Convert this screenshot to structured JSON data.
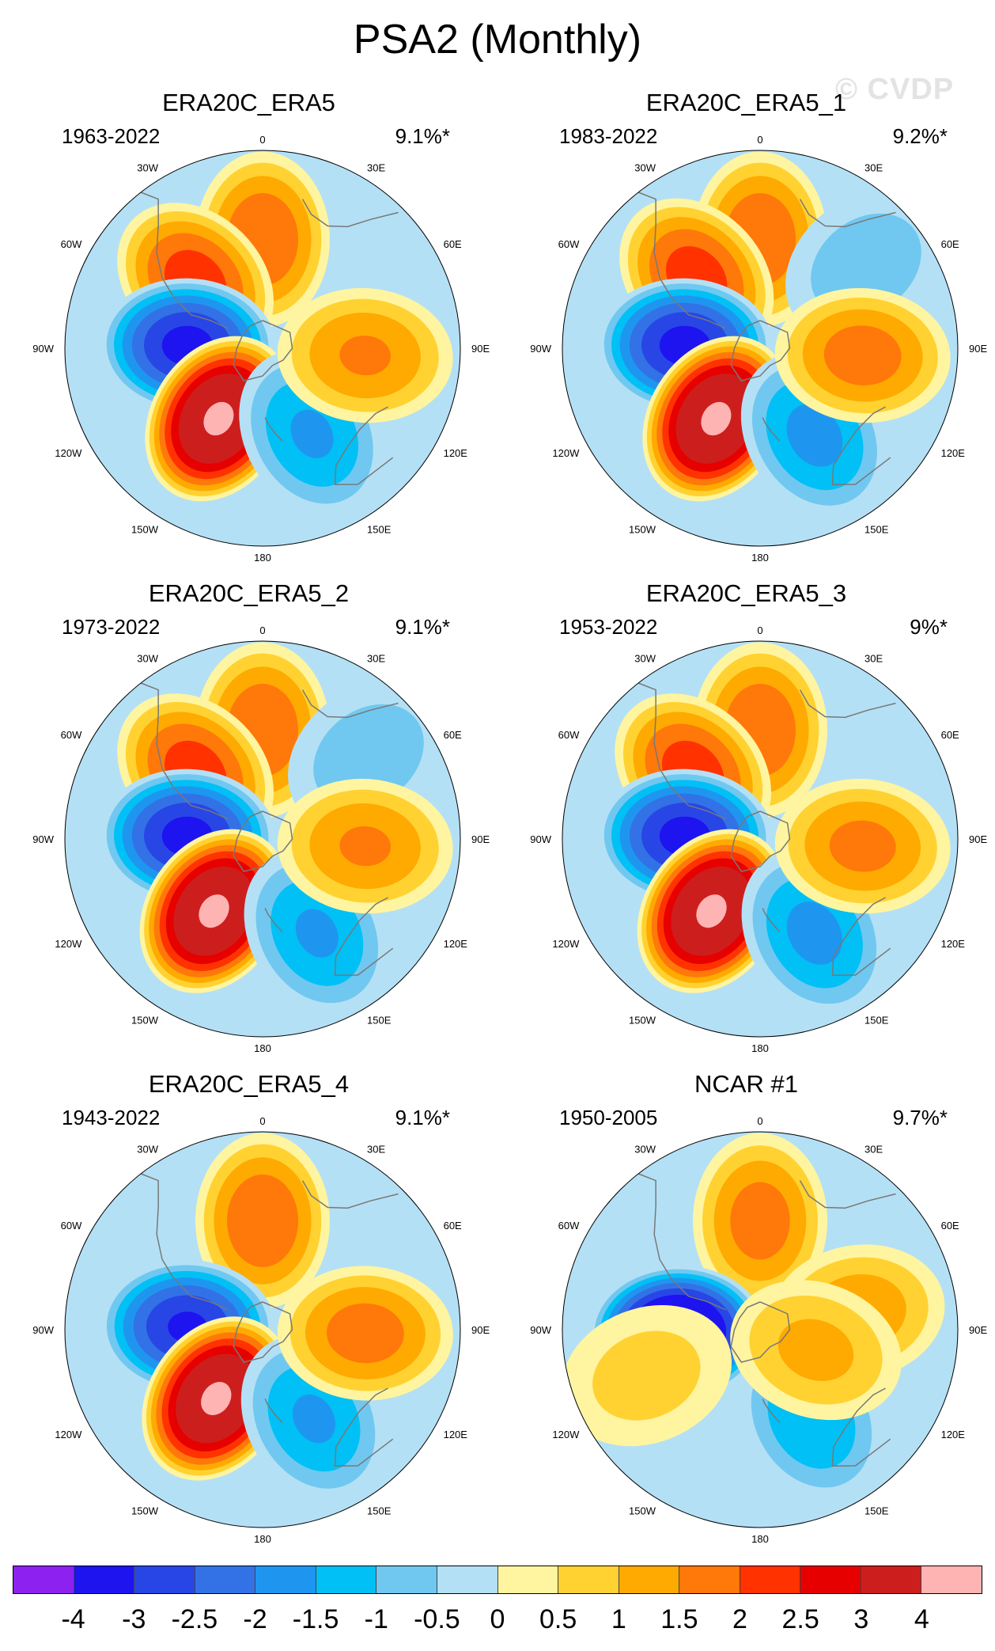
{
  "title": "PSA2 (Monthly)",
  "watermark": "© CVDP",
  "chart_data": [
    {
      "type": "heatmap",
      "title": "ERA20C_ERA5",
      "period": "1963-2022",
      "pct_variance": "9.1%*",
      "centers": [
        {
          "lon_deg": 0,
          "colat_norm": 0.55,
          "value": 2.0
        },
        {
          "lon_deg": 315,
          "colat_norm": 0.48,
          "value": 2.3
        },
        {
          "lon_deg": 272,
          "colat_norm": 0.38,
          "value": -3.2
        },
        {
          "lon_deg": 212,
          "colat_norm": 0.42,
          "value": 4.1
        },
        {
          "lon_deg": 150,
          "colat_norm": 0.5,
          "value": -1.6
        },
        {
          "lon_deg": 94,
          "colat_norm": 0.52,
          "value": 1.6
        }
      ]
    },
    {
      "type": "heatmap",
      "title": "ERA20C_ERA5_1",
      "period": "1983-2022",
      "pct_variance": "9.2%*",
      "centers": [
        {
          "lon_deg": 0,
          "colat_norm": 0.55,
          "value": 2.0
        },
        {
          "lon_deg": 318,
          "colat_norm": 0.48,
          "value": 2.3
        },
        {
          "lon_deg": 52,
          "colat_norm": 0.68,
          "value": -0.9
        },
        {
          "lon_deg": 272,
          "colat_norm": 0.38,
          "value": -3.2
        },
        {
          "lon_deg": 212,
          "colat_norm": 0.42,
          "value": 4.1
        },
        {
          "lon_deg": 148,
          "colat_norm": 0.52,
          "value": -1.7
        },
        {
          "lon_deg": 94,
          "colat_norm": 0.52,
          "value": 1.8
        }
      ]
    },
    {
      "type": "heatmap",
      "title": "ERA20C_ERA5_2",
      "period": "1973-2022",
      "pct_variance": "9.1%*",
      "centers": [
        {
          "lon_deg": 0,
          "colat_norm": 0.55,
          "value": 2.0
        },
        {
          "lon_deg": 315,
          "colat_norm": 0.48,
          "value": 2.3
        },
        {
          "lon_deg": 52,
          "colat_norm": 0.68,
          "value": -0.9
        },
        {
          "lon_deg": 272,
          "colat_norm": 0.38,
          "value": -3.2
        },
        {
          "lon_deg": 214,
          "colat_norm": 0.44,
          "value": 4.1
        },
        {
          "lon_deg": 150,
          "colat_norm": 0.55,
          "value": -1.6
        },
        {
          "lon_deg": 94,
          "colat_norm": 0.52,
          "value": 1.6
        }
      ]
    },
    {
      "type": "heatmap",
      "title": "ERA20C_ERA5_3",
      "period": "1953-2022",
      "pct_variance": "9%*",
      "centers": [
        {
          "lon_deg": 0,
          "colat_norm": 0.55,
          "value": 2.0
        },
        {
          "lon_deg": 315,
          "colat_norm": 0.48,
          "value": 2.3
        },
        {
          "lon_deg": 272,
          "colat_norm": 0.38,
          "value": -3.2
        },
        {
          "lon_deg": 214,
          "colat_norm": 0.44,
          "value": 4.1
        },
        {
          "lon_deg": 150,
          "colat_norm": 0.55,
          "value": -1.7
        },
        {
          "lon_deg": 94,
          "colat_norm": 0.52,
          "value": 1.7
        }
      ]
    },
    {
      "type": "heatmap",
      "title": "ERA20C_ERA5_4",
      "period": "1943-2022",
      "pct_variance": "9.1%*",
      "centers": [
        {
          "lon_deg": 0,
          "colat_norm": 0.55,
          "value": 2.0
        },
        {
          "lon_deg": 272,
          "colat_norm": 0.38,
          "value": -3.1
        },
        {
          "lon_deg": 214,
          "colat_norm": 0.42,
          "value": 4.1
        },
        {
          "lon_deg": 150,
          "colat_norm": 0.52,
          "value": -1.6
        },
        {
          "lon_deg": 92,
          "colat_norm": 0.52,
          "value": 1.8
        }
      ]
    },
    {
      "type": "heatmap",
      "title": "NCAR #1",
      "period": "1950-2005",
      "pct_variance": "9.7%*",
      "centers": [
        {
          "lon_deg": 0,
          "colat_norm": 0.55,
          "value": 1.8
        },
        {
          "lon_deg": 268,
          "colat_norm": 0.42,
          "value": -4.2
        },
        {
          "lon_deg": 248,
          "colat_norm": 0.62,
          "value": 0.8
        },
        {
          "lon_deg": 150,
          "colat_norm": 0.52,
          "value": -1.5
        },
        {
          "lon_deg": 80,
          "colat_norm": 0.5,
          "value": 1.4
        },
        {
          "lon_deg": 110,
          "colat_norm": 0.3,
          "value": 1.2
        }
      ]
    }
  ],
  "colorbar": {
    "levels": [
      "-4",
      "-3",
      "-2.5",
      "-2",
      "-1.5",
      "-1",
      "-0.5",
      "0",
      "0.5",
      "1",
      "1.5",
      "2",
      "2.5",
      "3",
      "4"
    ],
    "colors": [
      "#8c21f0",
      "#1e14f0",
      "#2846e6",
      "#3272e6",
      "#1e96f0",
      "#00c0f5",
      "#70c8f0",
      "#b4e0f5",
      "#fff5a0",
      "#ffd232",
      "#ffaa00",
      "#ff780a",
      "#ff3200",
      "#e60000",
      "#cd1e1e",
      "#ffb4b4"
    ]
  },
  "map": {
    "coast_color": "#787878",
    "longitude_labels": [
      "0",
      "30E",
      "60E",
      "90E",
      "120E",
      "150E",
      "180",
      "150W",
      "120W",
      "90W",
      "60W",
      "30W"
    ]
  }
}
